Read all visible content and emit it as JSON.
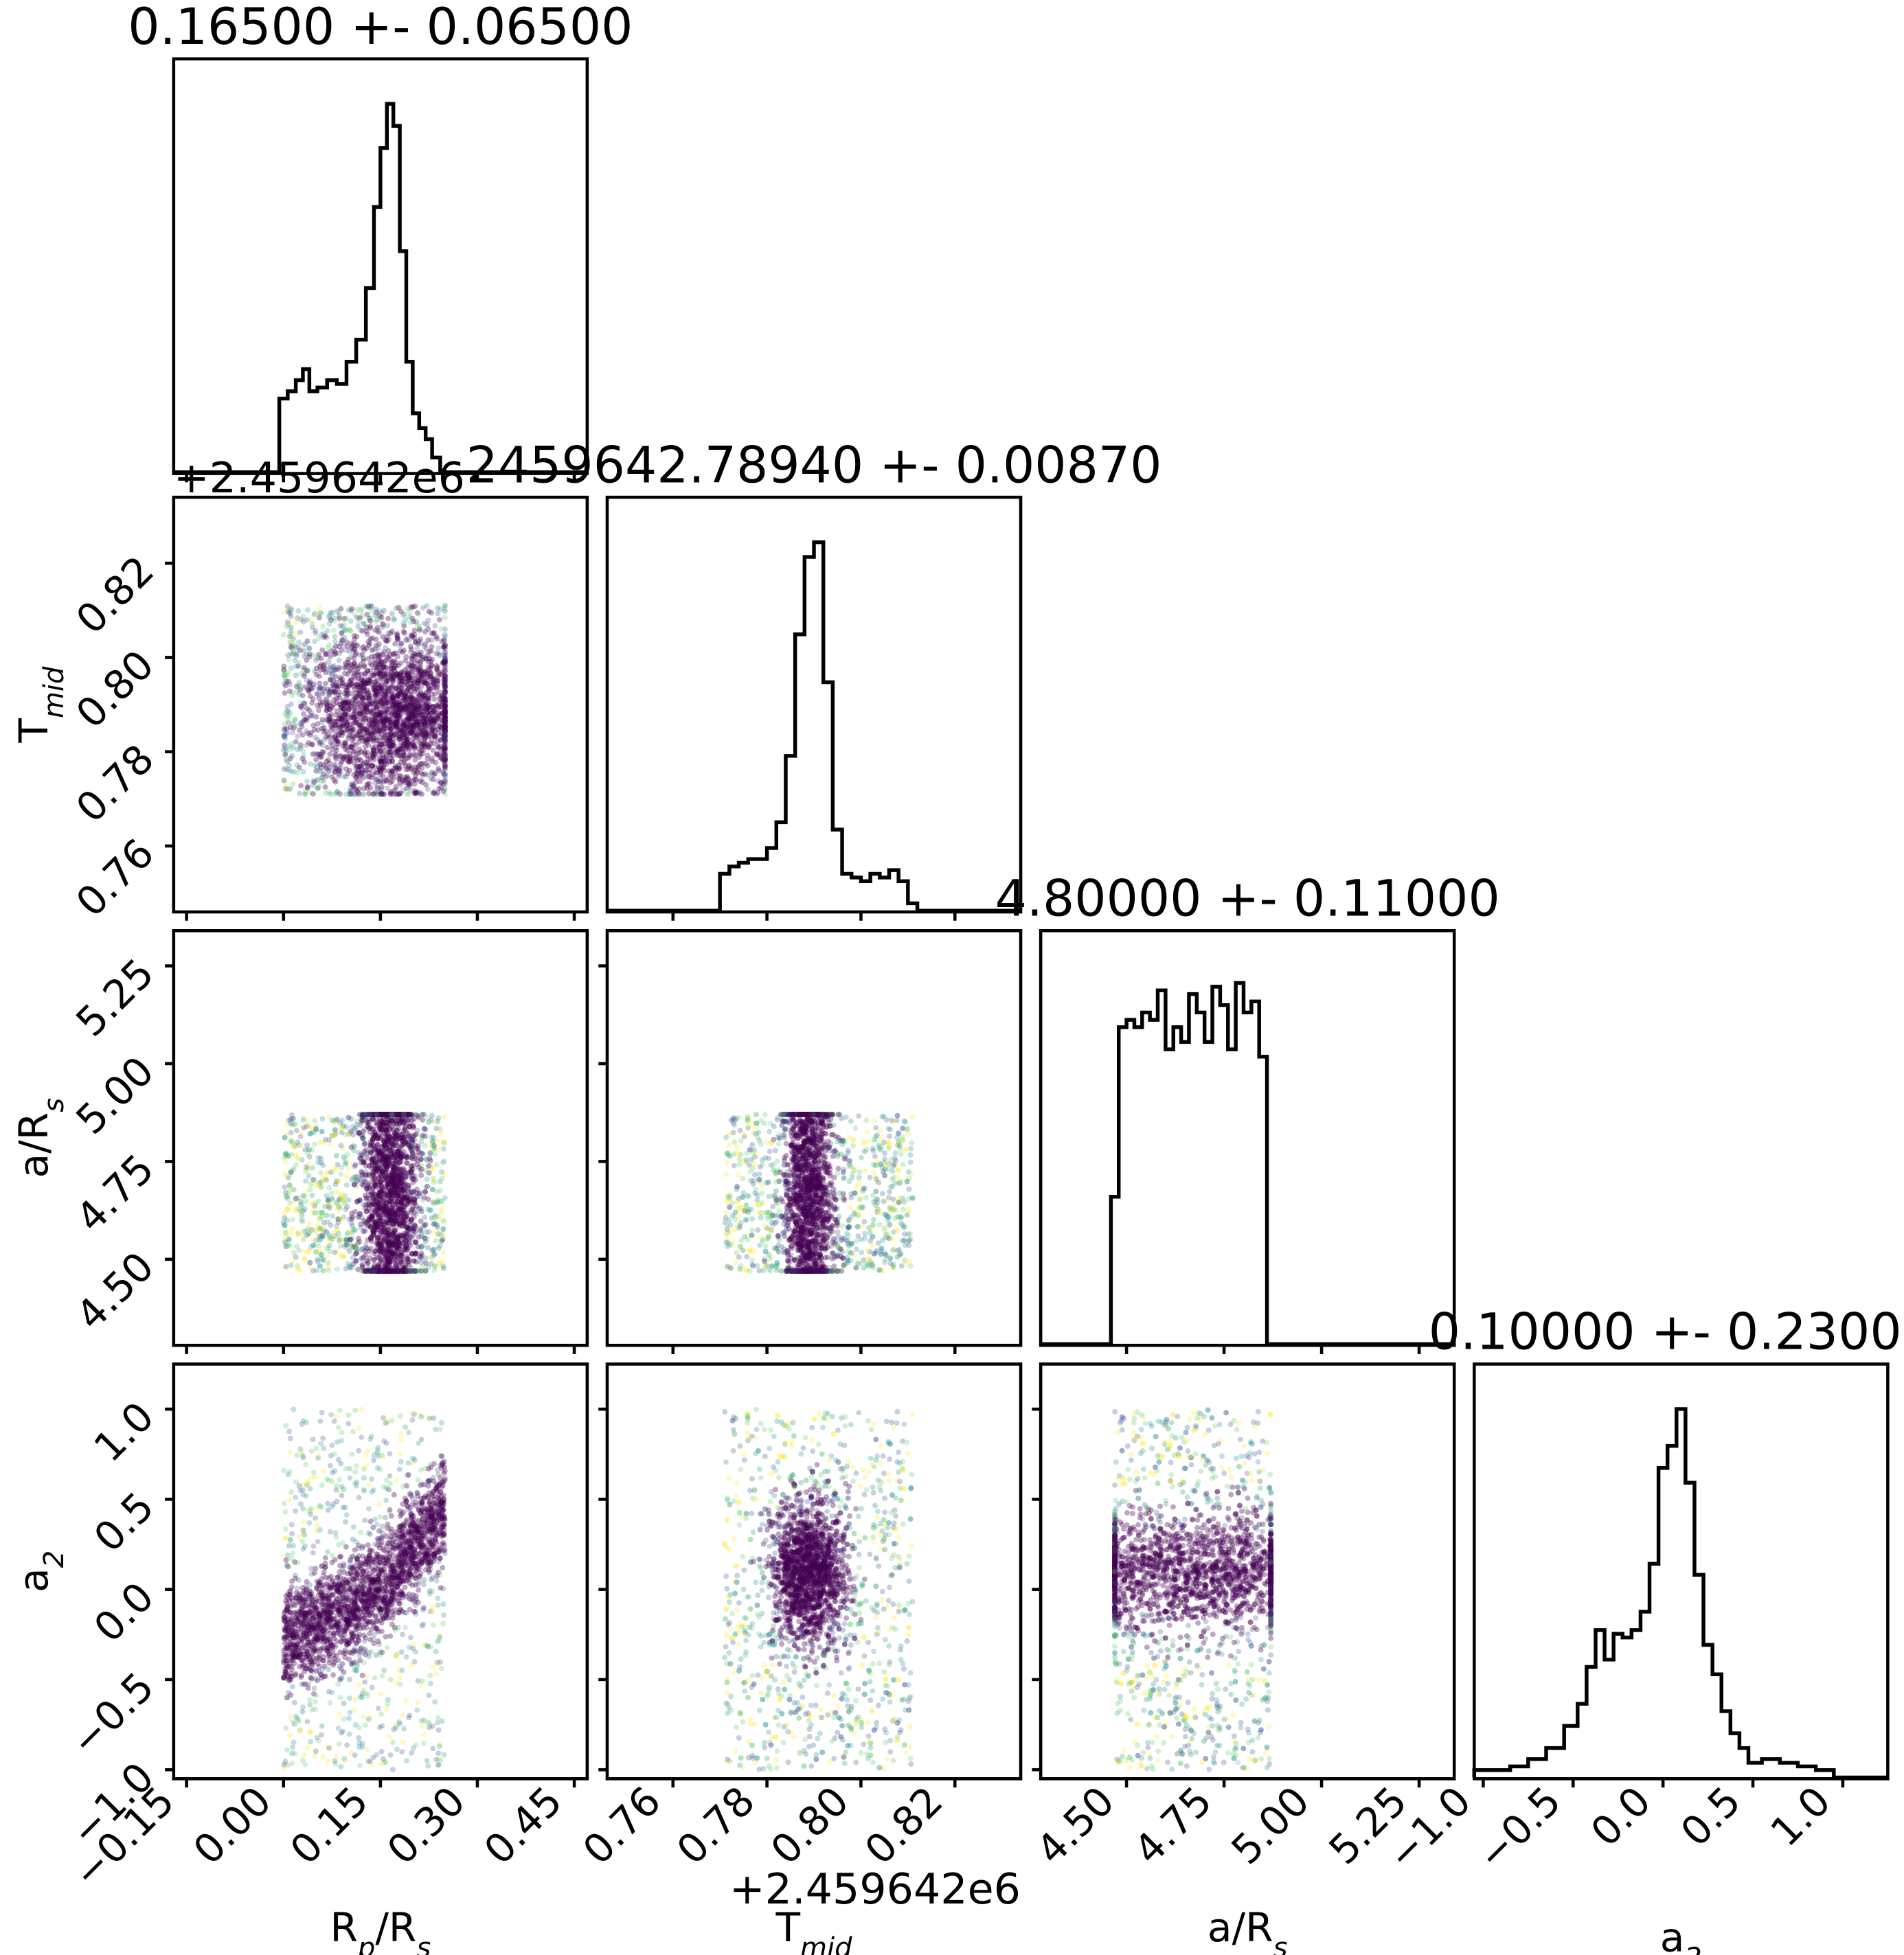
{
  "figure": {
    "type": "corner_plot",
    "colormap": [
      "#440154",
      "#3b528b",
      "#21918c",
      "#5ec962",
      "#fde725"
    ]
  },
  "chart_data": [
    {
      "type": "histogram",
      "panel": "diag-0",
      "param": "R_p/R_s",
      "title": "0.16500 +- 0.06500",
      "xlim": [
        -0.17,
        0.47
      ],
      "x": [
        0.0,
        0.013,
        0.025,
        0.035,
        0.045,
        0.06,
        0.075,
        0.09,
        0.105,
        0.12,
        0.135,
        0.145,
        0.155,
        0.165,
        0.175,
        0.185,
        0.195,
        0.205,
        0.215,
        0.225,
        0.235,
        0.25
      ],
      "counts": [
        0.2,
        0.22,
        0.25,
        0.28,
        0.22,
        0.23,
        0.25,
        0.24,
        0.3,
        0.36,
        0.5,
        0.72,
        0.88,
        1.0,
        0.94,
        0.6,
        0.3,
        0.16,
        0.12,
        0.09,
        0.04,
        0.0
      ],
      "xticks": [
        "−0.15",
        "0.00",
        "0.15",
        "0.30",
        "0.45"
      ],
      "xtick_values": [
        -0.15,
        0.0,
        0.15,
        0.3,
        0.45
      ]
    },
    {
      "type": "histogram",
      "panel": "diag-1",
      "param": "T_mid",
      "title": "2459642.78940 +- 0.00870",
      "xlim": [
        0.746,
        0.834
      ],
      "x": [
        0.771,
        0.773,
        0.775,
        0.777,
        0.779,
        0.781,
        0.783,
        0.785,
        0.787,
        0.789,
        0.791,
        0.793,
        0.795,
        0.797,
        0.799,
        0.801,
        0.803,
        0.805,
        0.807,
        0.809,
        0.811,
        0.813
      ],
      "counts": [
        0.1,
        0.12,
        0.13,
        0.14,
        0.14,
        0.17,
        0.24,
        0.42,
        0.75,
        0.96,
        1.0,
        0.62,
        0.22,
        0.1,
        0.09,
        0.08,
        0.1,
        0.09,
        0.11,
        0.08,
        0.02,
        0.0
      ],
      "xticks": [
        "0.76",
        "0.78",
        "0.80",
        "0.82"
      ],
      "xtick_values": [
        0.76,
        0.78,
        0.8,
        0.82
      ],
      "xoffset": "+2.459642e6"
    },
    {
      "type": "histogram",
      "panel": "diag-2",
      "param": "a/R_s",
      "title": "4.80000 +- 0.11000",
      "xlim": [
        4.28,
        5.34
      ],
      "x": [
        4.47,
        4.49,
        4.51,
        4.53,
        4.55,
        4.57,
        4.59,
        4.61,
        4.63,
        4.65,
        4.67,
        4.69,
        4.71,
        4.73,
        4.75,
        4.77,
        4.79,
        4.81,
        4.83,
        4.85,
        4.87
      ],
      "counts": [
        0.4,
        0.86,
        0.88,
        0.86,
        0.9,
        0.88,
        0.96,
        0.8,
        0.86,
        0.82,
        0.95,
        0.9,
        0.82,
        0.97,
        0.92,
        0.8,
        0.98,
        0.9,
        0.93,
        0.78,
        0.0
      ],
      "xticks": [
        "4.50",
        "4.75",
        "5.00",
        "5.25"
      ],
      "xtick_values": [
        4.5,
        4.75,
        5.0,
        5.25
      ]
    },
    {
      "type": "histogram",
      "panel": "diag-3",
      "param": "a_2",
      "title": "0.10000 +- 0.23000",
      "xlim": [
        -1.05,
        1.25
      ],
      "x": [
        -1.0,
        -0.9,
        -0.8,
        -0.7,
        -0.6,
        -0.5,
        -0.45,
        -0.4,
        -0.35,
        -0.3,
        -0.25,
        -0.2,
        -0.15,
        -0.1,
        -0.05,
        0.0,
        0.05,
        0.1,
        0.15,
        0.2,
        0.25,
        0.3,
        0.35,
        0.4,
        0.45,
        0.5,
        0.6,
        0.7,
        0.8,
        0.9,
        1.0
      ],
      "counts": [
        0.02,
        0.02,
        0.03,
        0.05,
        0.08,
        0.14,
        0.2,
        0.3,
        0.4,
        0.32,
        0.39,
        0.38,
        0.4,
        0.45,
        0.58,
        0.84,
        0.9,
        1.0,
        0.8,
        0.55,
        0.36,
        0.28,
        0.18,
        0.12,
        0.08,
        0.04,
        0.05,
        0.04,
        0.03,
        0.02,
        0.0
      ],
      "xticks": [
        "−1.0",
        "−0.5",
        "0.0",
        "0.5",
        "1.0"
      ],
      "xtick_values": [
        -1.0,
        -0.5,
        0.0,
        0.5,
        1.0
      ]
    },
    {
      "type": "scatter",
      "panel": "scatter-1-0",
      "x_param": "R_p/R_s",
      "y_param": "T_mid",
      "xrange": [
        0.0,
        0.25
      ],
      "yrange": [
        0.771,
        0.811
      ],
      "center": [
        0.17,
        0.788
      ],
      "spread": [
        0.06,
        0.008
      ],
      "yoffset": "+2.459642e6"
    },
    {
      "type": "scatter",
      "panel": "scatter-2-0",
      "x_param": "R_p/R_s",
      "y_param": "a/R_s",
      "xrange": [
        0.0,
        0.25
      ],
      "yrange": [
        4.47,
        4.87
      ],
      "center": [
        0.165,
        4.67
      ],
      "spread": [
        0.02,
        0.2
      ]
    },
    {
      "type": "scatter",
      "panel": "scatter-2-1",
      "x_param": "T_mid",
      "y_param": "a/R_s",
      "xrange": [
        0.771,
        0.811
      ],
      "yrange": [
        4.47,
        4.87
      ],
      "center": [
        0.789,
        4.67
      ],
      "spread": [
        0.0025,
        0.2
      ]
    },
    {
      "type": "scatter",
      "panel": "scatter-3-0",
      "x_param": "R_p/R_s",
      "y_param": "a_2",
      "xrange": [
        0.0,
        0.25
      ],
      "yrange": [
        -1.0,
        1.0
      ],
      "trend": [
        [
          0.0,
          -0.28
        ],
        [
          0.1,
          -0.12
        ],
        [
          0.17,
          0.1
        ],
        [
          0.25,
          0.45
        ]
      ]
    },
    {
      "type": "scatter",
      "panel": "scatter-3-1",
      "x_param": "T_mid",
      "y_param": "a_2",
      "xrange": [
        0.771,
        0.811
      ],
      "yrange": [
        -1.0,
        1.0
      ],
      "center": [
        0.789,
        0.1
      ],
      "spread": [
        0.004,
        0.2
      ]
    },
    {
      "type": "scatter",
      "panel": "scatter-3-2",
      "x_param": "a/R_s",
      "y_param": "a_2",
      "xrange": [
        4.47,
        4.87
      ],
      "yrange": [
        -1.0,
        1.0
      ],
      "center": [
        4.67,
        0.1
      ],
      "spread": [
        0.2,
        0.15
      ]
    }
  ],
  "axes": {
    "row_labels": [
      "T_mid",
      "a/R_s",
      "a_2"
    ],
    "col_labels": [
      "R_p/R_s",
      "T_mid",
      "a/R_s",
      "a_2"
    ],
    "label_text": {
      "T_mid": {
        "base": "T",
        "sub": "mid"
      },
      "a/R_s": {
        "base": "a/R",
        "sub": "s"
      },
      "a_2": {
        "base": "a",
        "sub": "2"
      },
      "R_p/R_s": {
        "base": "R",
        "sub": "p",
        "rest": "/R",
        "sub2": "s"
      }
    },
    "row_ticks": {
      "T_mid": {
        "labels": [
          "0.76",
          "0.78",
          "0.80",
          "0.82"
        ],
        "values": [
          0.76,
          0.78,
          0.8,
          0.82
        ],
        "lim": [
          0.746,
          0.834
        ],
        "offset": "+2.459642e6"
      },
      "a/R_s": {
        "labels": [
          "4.50",
          "4.75",
          "5.00",
          "5.25"
        ],
        "values": [
          4.5,
          4.75,
          5.0,
          5.25
        ],
        "lim": [
          4.28,
          5.34
        ]
      },
      "a_2": {
        "labels": [
          "−1.0",
          "−0.5",
          "0.0",
          "0.5",
          "1.0"
        ],
        "values": [
          -1.0,
          -0.5,
          0.0,
          0.5,
          1.0
        ],
        "lim": [
          -1.05,
          1.25
        ]
      }
    }
  }
}
